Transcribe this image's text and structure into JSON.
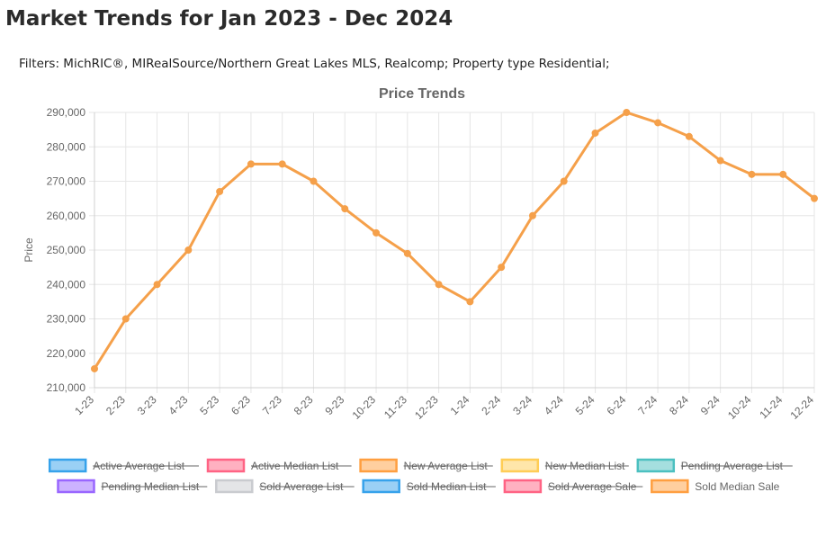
{
  "page": {
    "title": "Market Trends for Jan 2023 - Dec 2024",
    "filters": "Filters: MichRIC®, MIRealSource/Northern Great Lakes MLS, Realcomp; Property type Residential;"
  },
  "chart_data": {
    "type": "line",
    "title": "Price Trends",
    "xlabel": "",
    "ylabel": "Price",
    "categories": [
      "1-23",
      "2-23",
      "3-23",
      "4-23",
      "5-23",
      "6-23",
      "7-23",
      "8-23",
      "9-23",
      "10-23",
      "11-23",
      "12-23",
      "1-24",
      "2-24",
      "3-24",
      "4-24",
      "5-24",
      "6-24",
      "7-24",
      "8-24",
      "9-24",
      "10-24",
      "11-24",
      "12-24"
    ],
    "ylim": [
      210000,
      290000
    ],
    "yticks": [
      210000,
      220000,
      230000,
      240000,
      250000,
      260000,
      270000,
      280000,
      290000
    ],
    "ytick_labels": [
      "210,000",
      "220,000",
      "230,000",
      "240,000",
      "250,000",
      "260,000",
      "270,000",
      "280,000",
      "290,000"
    ],
    "grid": true,
    "legend_position": "bottom",
    "series": [
      {
        "name": "Sold Median Sale",
        "color": "#f5a04a",
        "values": [
          215500,
          230000,
          240000,
          250000,
          267000,
          275000,
          275000,
          270000,
          262000,
          255000,
          249000,
          240000,
          235000,
          245000,
          260000,
          270000,
          284000,
          290000,
          287000,
          283000,
          276000,
          272000,
          272000,
          265000
        ]
      }
    ],
    "legend": [
      {
        "name": "Active Average List",
        "color": "#36a2eb",
        "fill": "#9ad0f5",
        "hidden": true
      },
      {
        "name": "Active Median List",
        "color": "#ff6384",
        "fill": "#ffb1c1",
        "hidden": true
      },
      {
        "name": "New Average List",
        "color": "#ff9f40",
        "fill": "#ffcf9f",
        "hidden": true
      },
      {
        "name": "New Median List",
        "color": "#ffcd56",
        "fill": "#ffe6aa",
        "hidden": true
      },
      {
        "name": "Pending Average List",
        "color": "#4bc0c0",
        "fill": "#a5dfdf",
        "hidden": true
      },
      {
        "name": "Pending Median List",
        "color": "#9966ff",
        "fill": "#ccb2ff",
        "hidden": true
      },
      {
        "name": "Sold Average List",
        "color": "#c9cbcf",
        "fill": "#e4e5e7",
        "hidden": true
      },
      {
        "name": "Sold Median List",
        "color": "#36a2eb",
        "fill": "#9ad0f5",
        "hidden": true
      },
      {
        "name": "Sold Average Sale",
        "color": "#ff6384",
        "fill": "#ffb1c1",
        "hidden": true
      },
      {
        "name": "Sold Median Sale",
        "color": "#ff9f40",
        "fill": "#ffcf9f",
        "hidden": false
      }
    ]
  }
}
